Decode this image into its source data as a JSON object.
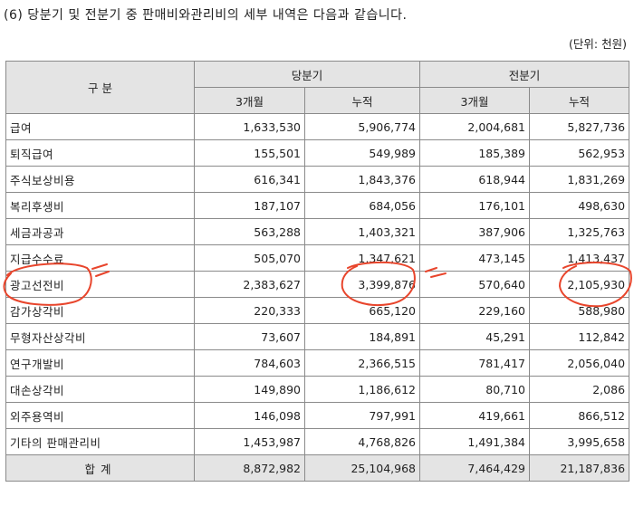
{
  "heading": "(6) 당분기 및 전분기 중 판매비와관리비의 세부 내역은 다음과 같습니다.",
  "unit": "(단위: 천원)",
  "table": {
    "col_category": "구 분",
    "group_current": "당분기",
    "group_prior": "전분기",
    "sub_3m": "3개월",
    "sub_cum": "누적",
    "rows": [
      {
        "label": "급여",
        "cur_3m": "1,633,530",
        "cur_cum": "5,906,774",
        "pri_3m": "2,004,681",
        "pri_cum": "5,827,736"
      },
      {
        "label": "퇴직급여",
        "cur_3m": "155,501",
        "cur_cum": "549,989",
        "pri_3m": "185,389",
        "pri_cum": "562,953"
      },
      {
        "label": "주식보상비용",
        "cur_3m": "616,341",
        "cur_cum": "1,843,376",
        "pri_3m": "618,944",
        "pri_cum": "1,831,269"
      },
      {
        "label": "복리후생비",
        "cur_3m": "187,107",
        "cur_cum": "684,056",
        "pri_3m": "176,101",
        "pri_cum": "498,630"
      },
      {
        "label": "세금과공과",
        "cur_3m": "563,288",
        "cur_cum": "1,403,321",
        "pri_3m": "387,906",
        "pri_cum": "1,325,763"
      },
      {
        "label": "지급수수료",
        "cur_3m": "505,070",
        "cur_cum": "1,347,621",
        "pri_3m": "473,145",
        "pri_cum": "1,413,437"
      },
      {
        "label": "광고선전비",
        "cur_3m": "2,383,627",
        "cur_cum": "3,399,876",
        "pri_3m": "570,640",
        "pri_cum": "2,105,930"
      },
      {
        "label": "감가상각비",
        "cur_3m": "220,333",
        "cur_cum": "665,120",
        "pri_3m": "229,160",
        "pri_cum": "588,980"
      },
      {
        "label": "무형자산상각비",
        "cur_3m": "73,607",
        "cur_cum": "184,891",
        "pri_3m": "45,291",
        "pri_cum": "112,842"
      },
      {
        "label": "연구개발비",
        "cur_3m": "784,603",
        "cur_cum": "2,366,515",
        "pri_3m": "781,417",
        "pri_cum": "2,056,040"
      },
      {
        "label": "대손상각비",
        "cur_3m": "149,890",
        "cur_cum": "1,186,612",
        "pri_3m": "80,710",
        "pri_cum": "2,086"
      },
      {
        "label": "외주용역비",
        "cur_3m": "146,098",
        "cur_cum": "797,991",
        "pri_3m": "419,661",
        "pri_cum": "866,512"
      },
      {
        "label": "기타의 판매관리비",
        "cur_3m": "1,453,987",
        "cur_cum": "4,768,826",
        "pri_3m": "1,491,384",
        "pri_cum": "3,995,658"
      }
    ],
    "total": {
      "label": "합계",
      "cur_3m": "8,872,982",
      "cur_cum": "25,104,968",
      "pri_3m": "7,464,429",
      "pri_cum": "21,187,836"
    }
  },
  "annotation_color": "#e8452c"
}
